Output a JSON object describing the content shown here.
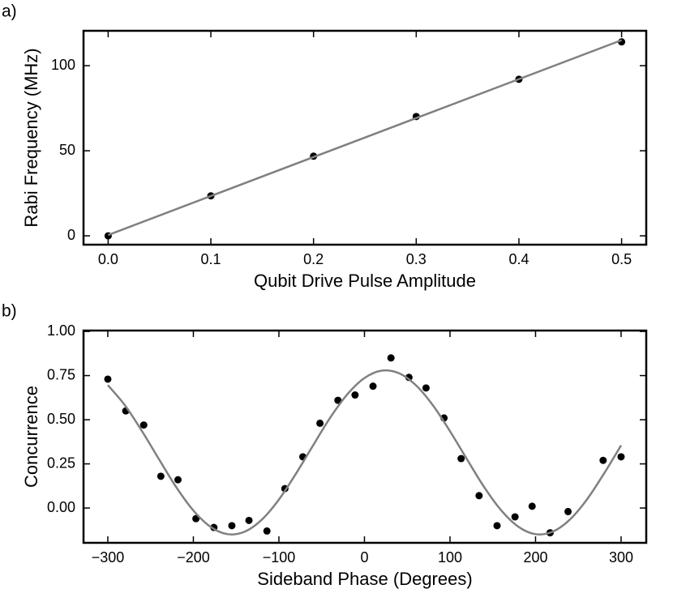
{
  "chart_data": [
    {
      "type": "scatter",
      "panel_label": "a)",
      "x_label": "Qubit Drive Pulse Amplitude",
      "y_label": "Rabi Frequency (MHz)",
      "xlim": [
        -0.024,
        0.524
      ],
      "ylim": [
        -5.2,
        120.5
      ],
      "xticks": [
        {
          "value": 0,
          "label": "0.0"
        },
        0.1,
        0.2,
        0.3,
        0.4,
        0.5
      ],
      "yticks": [
        0,
        50,
        100
      ],
      "series": [
        {
          "style": "markers",
          "color": "#000000",
          "x": [
            0,
            0.1,
            0.2,
            0.3,
            0.4,
            0.5
          ],
          "values": [
            0,
            23.5,
            46.8,
            70.1,
            92,
            114
          ]
        },
        {
          "style": "line",
          "color": "#808080",
          "x": [
            0,
            0.5
          ],
          "values": [
            0.5,
            115
          ]
        }
      ]
    },
    {
      "type": "scatter",
      "panel_label": "b)",
      "x_label": "Sideband Phase (Degrees)",
      "y_label": "Concurrence",
      "xlim": [
        -328.4,
        329.4
      ],
      "ylim": [
        -0.197,
        1.005
      ],
      "xticks": [
        {
          "value": -300,
          "label": "−300"
        },
        {
          "value": -200,
          "label": "−200"
        },
        {
          "value": -100,
          "label": "−100"
        },
        0,
        100,
        200,
        300
      ],
      "yticks": [
        {
          "value": 0,
          "label": "0.00"
        },
        {
          "value": 0.25,
          "label": "0.25"
        },
        {
          "value": 0.5,
          "label": "0.50"
        },
        {
          "value": 0.75,
          "label": "0.75"
        },
        {
          "value": 1,
          "label": "1.00"
        }
      ],
      "series": [
        {
          "style": "markers",
          "color": "#000000",
          "x": [
            -300,
            -279,
            -258,
            -238,
            -218,
            -197,
            -176,
            -155,
            -135,
            -114,
            -93,
            -72,
            -52,
            -31,
            -11,
            10,
            31,
            52,
            72,
            93,
            113,
            134,
            155,
            176,
            196,
            217,
            238,
            279,
            300
          ],
          "values": [
            0.73,
            0.55,
            0.47,
            0.18,
            0.16,
            -0.06,
            -0.11,
            -0.1,
            -0.07,
            -0.13,
            0.11,
            0.29,
            0.48,
            0.61,
            0.64,
            0.69,
            0.85,
            0.74,
            0.68,
            0.51,
            0.28,
            0.07,
            -0.1,
            -0.05,
            0.01,
            -0.14,
            -0.02,
            0.27,
            0.29
          ]
        },
        {
          "style": "line",
          "color": "#808080",
          "x": [
            -300,
            -280,
            -260,
            -240,
            -220,
            -200,
            -180,
            -160,
            -140,
            -120,
            -100,
            -80,
            -60,
            -40,
            -20,
            0,
            20,
            40,
            60,
            80,
            100,
            120,
            140,
            160,
            180,
            200,
            220,
            240,
            260,
            280,
            300
          ],
          "values": [
            0.696,
            0.582,
            0.435,
            0.275,
            0.118,
            -0.014,
            -0.106,
            -0.148,
            -0.134,
            -0.066,
            0.048,
            0.195,
            0.355,
            0.512,
            0.644,
            0.736,
            0.778,
            0.764,
            0.696,
            0.582,
            0.435,
            0.275,
            0.118,
            -0.014,
            -0.106,
            -0.148,
            -0.134,
            -0.066,
            0.048,
            0.195,
            0.355
          ]
        }
      ]
    }
  ]
}
